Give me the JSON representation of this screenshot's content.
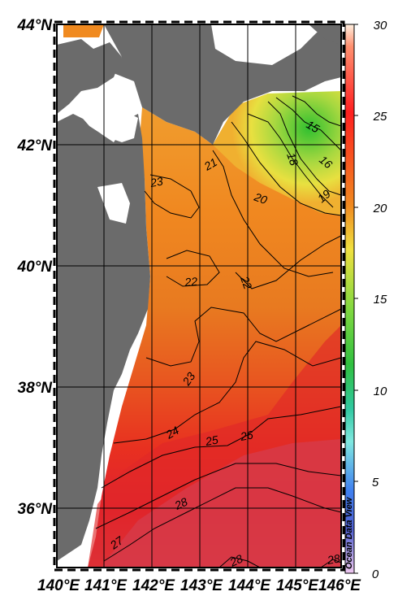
{
  "map": {
    "lat_labels": [
      "44°N",
      "42°N",
      "40°N",
      "38°N",
      "36°N"
    ],
    "lon_labels": [
      "140°E",
      "141°E",
      "142°E",
      "143°E",
      "144°E",
      "145°E",
      "146°E"
    ],
    "extent": {
      "lon_min": 140,
      "lon_max": 146.5,
      "lat_min": 35,
      "lat_max": 44
    },
    "land_color": "#6b6b6b",
    "grid": true
  },
  "contours": {
    "labels": [
      "23",
      "21",
      "20",
      "18",
      "16",
      "15",
      "19",
      "22",
      "22",
      "23",
      "24",
      "25",
      "26",
      "28",
      "27",
      "28",
      "28"
    ]
  },
  "colorbar": {
    "ticks": [
      "30",
      "25",
      "20",
      "15",
      "10",
      "5",
      "0"
    ],
    "range": [
      0,
      30
    ],
    "stops": [
      "#fff0e0",
      "#ff3030",
      "#f08a20",
      "#f0e040",
      "#30cc30",
      "#80e8e0",
      "#2060f0",
      "#e0b8f0"
    ]
  },
  "credit": "Ocean Data View"
}
